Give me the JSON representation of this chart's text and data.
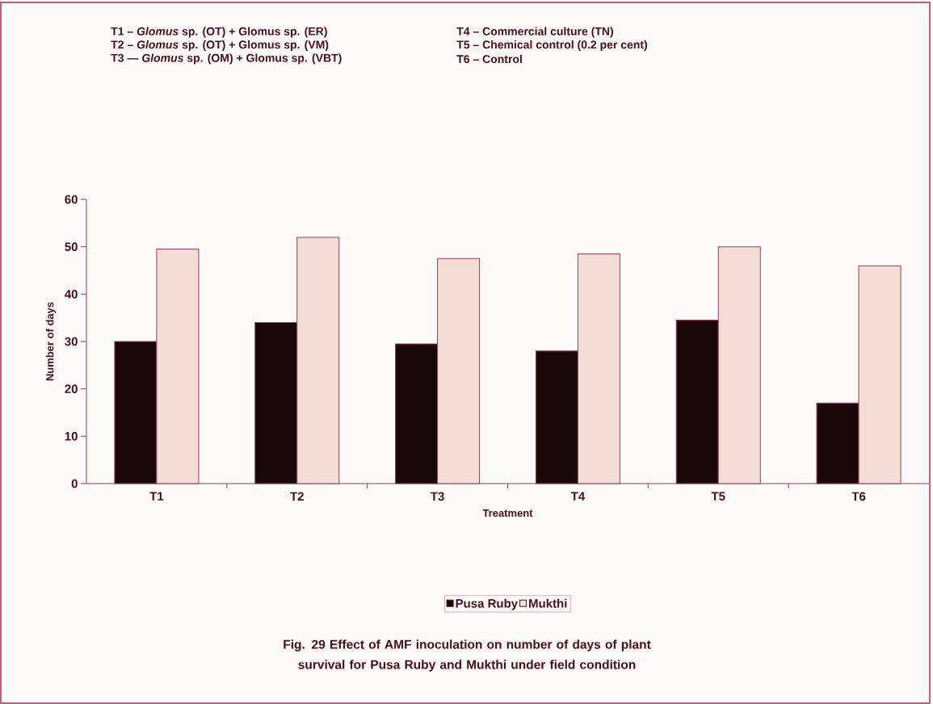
{
  "chart_data": {
    "type": "bar",
    "title": "Fig. 29  Effect of AMF inoculation on number of days of plant survival for Pusa Ruby and Mukthi under field condition",
    "xlabel": "Treatment",
    "ylabel": "Number of days",
    "annotations": [
      "T1 – *Glomus* sp. (OT) + Glomus sp. (ER)",
      "T2 – *Glomus* sp. (OT) + Glomus sp. (VM)",
      "T3 — *Glomus* sp. (OM) + Glomus sp. (VBT)",
      "T4 –  Commercial culture (TN)",
      "T5 – Chemical control (0.2 per cent)",
      "T6 – Control"
    ],
    "categories": [
      "T1",
      "T2",
      "T3",
      "T4",
      "T5",
      "T6"
    ],
    "series": [
      {
        "name": "Pusa Ruby",
        "color": "#1a0808",
        "values": [
          30,
          34,
          29.5,
          28,
          34.5,
          17
        ]
      },
      {
        "name": "Mukthi",
        "color": "#f4ddd6",
        "values": [
          49.5,
          52,
          47.5,
          48.5,
          50,
          46
        ]
      }
    ],
    "ylim": [
      0,
      60
    ],
    "yticks": [
      0,
      10,
      20,
      30,
      40,
      50,
      60
    ],
    "legend": "bottom"
  }
}
